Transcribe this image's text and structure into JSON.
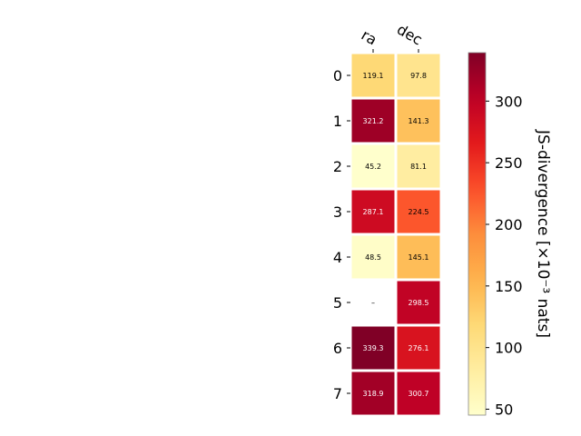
{
  "chart_data": {
    "type": "heatmap",
    "columns": [
      "ra",
      "dec"
    ],
    "rows": [
      "0",
      "1",
      "2",
      "3",
      "4",
      "5",
      "6",
      "7"
    ],
    "values": [
      [
        119.1,
        97.8
      ],
      [
        321.2,
        141.3
      ],
      [
        45.2,
        81.1
      ],
      [
        287.1,
        224.5
      ],
      [
        48.5,
        145.1
      ],
      [
        null,
        298.5
      ],
      [
        339.3,
        276.1
      ],
      [
        318.9,
        300.7
      ]
    ],
    "labels": [
      [
        "119.1",
        "97.8"
      ],
      [
        "321.2",
        "141.3"
      ],
      [
        "45.2",
        "81.1"
      ],
      [
        "287.1",
        "224.5"
      ],
      [
        "48.5",
        "145.1"
      ],
      [
        "–",
        "298.5"
      ],
      [
        "339.3",
        "276.1"
      ],
      [
        "318.9",
        "300.7"
      ]
    ],
    "colormap": "YlOrRd",
    "missing_color": "#ffffff",
    "colorbar": {
      "label": "JS-divergence [×10⁻³ nats]",
      "range": [
        45.2,
        339.3
      ],
      "ticks": [
        50,
        100,
        150,
        200,
        250,
        300
      ],
      "tick_labels": [
        "50",
        "100",
        "150",
        "200",
        "250",
        "300"
      ]
    }
  }
}
